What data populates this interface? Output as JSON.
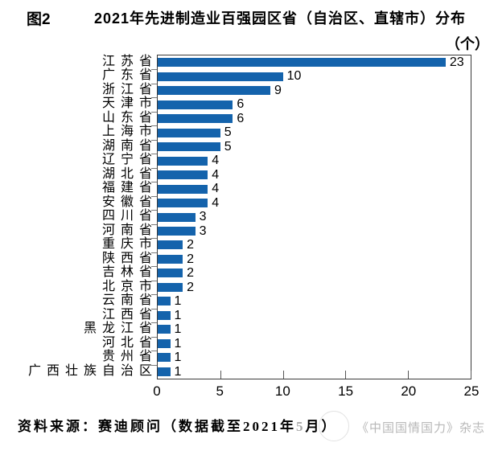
{
  "title": {
    "figure_label": "图2",
    "text": "2021年先进制造业百强园区省（自治区、直辖市）分布",
    "unit": "（个）"
  },
  "chart_data": {
    "type": "bar",
    "orientation": "horizontal",
    "title": "2021年先进制造业百强园区省（自治区、直辖市）分布（个）",
    "categories": [
      "江苏省",
      "广东省",
      "浙江省",
      "天津市",
      "山东省",
      "上海市",
      "湖南省",
      "辽宁省",
      "湖北省",
      "福建省",
      "安徽省",
      "四川省",
      "河南省",
      "重庆市",
      "陕西省",
      "吉林省",
      "北京市",
      "云南省",
      "江西省",
      "黑龙江省",
      "河北省",
      "贵州省",
      "广西壮族自治区"
    ],
    "values": [
      23,
      10,
      9,
      6,
      6,
      5,
      5,
      4,
      4,
      4,
      4,
      3,
      3,
      2,
      2,
      2,
      2,
      1,
      1,
      1,
      1,
      1,
      1
    ],
    "xlim": [
      0,
      25
    ],
    "x_ticks": [
      0,
      5,
      10,
      15,
      20,
      25
    ],
    "data_labels": true,
    "grid": false,
    "legend": "none",
    "bar_color": "#1463ac"
  },
  "footer": {
    "source_prefix": "资料来源：赛迪顾问（数据截至2021年",
    "source_month": "5",
    "source_suffix": "月）",
    "watermark": "《中国国情国力》杂志"
  }
}
